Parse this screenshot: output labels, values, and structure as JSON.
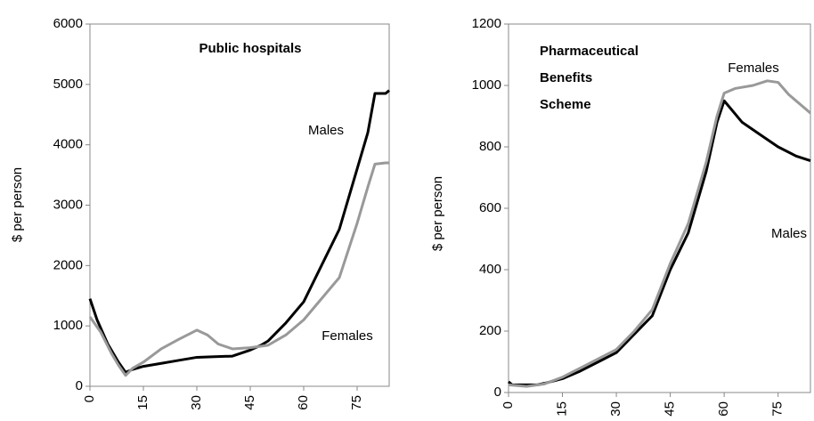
{
  "chart_data": [
    {
      "type": "line",
      "ylabel": "$ per person",
      "annotations": [
        "Public hospitals",
        "Males",
        "Females"
      ],
      "xlim": [
        0,
        84
      ],
      "xticks": [
        0,
        15,
        30,
        45,
        60,
        75
      ],
      "ylim": [
        0,
        6000
      ],
      "yticks": [
        0,
        1000,
        2000,
        3000,
        4000,
        5000,
        6000
      ],
      "series": [
        {
          "name": "Males",
          "color": "#000000",
          "x": [
            0,
            2,
            5,
            8,
            10,
            12,
            15,
            20,
            25,
            30,
            35,
            40,
            45,
            48,
            50,
            55,
            60,
            65,
            70,
            75,
            78,
            80,
            83,
            84
          ],
          "values": [
            1450,
            1100,
            700,
            400,
            230,
            280,
            330,
            380,
            430,
            480,
            490,
            500,
            600,
            680,
            750,
            1050,
            1400,
            2000,
            2600,
            3600,
            4200,
            4850,
            4850,
            4900
          ]
        },
        {
          "name": "Females",
          "color": "#999999",
          "x": [
            0,
            3,
            6,
            8,
            10,
            12,
            15,
            20,
            25,
            30,
            33,
            36,
            40,
            45,
            50,
            55,
            60,
            65,
            70,
            75,
            78,
            80,
            83,
            84
          ],
          "values": [
            1150,
            900,
            550,
            350,
            180,
            300,
            400,
            620,
            780,
            930,
            850,
            700,
            620,
            640,
            680,
            850,
            1100,
            1450,
            1800,
            2700,
            3300,
            3680,
            3700,
            3700
          ]
        }
      ]
    },
    {
      "type": "line",
      "ylabel": "$ per person",
      "annotations": [
        "Pharmaceutical",
        "Benefits",
        "Scheme",
        "Females",
        "Males"
      ],
      "xlim": [
        0,
        84
      ],
      "xticks": [
        0,
        15,
        30,
        45,
        60,
        75
      ],
      "ylim": [
        0,
        1200
      ],
      "yticks": [
        0,
        200,
        400,
        600,
        800,
        1000,
        1200
      ],
      "series": [
        {
          "name": "Males",
          "color": "#000000",
          "x": [
            0,
            1,
            5,
            8,
            10,
            15,
            20,
            25,
            30,
            35,
            40,
            45,
            50,
            55,
            58,
            60,
            65,
            70,
            75,
            80,
            84
          ],
          "values": [
            35,
            25,
            25,
            25,
            30,
            45,
            70,
            100,
            130,
            190,
            250,
            400,
            520,
            720,
            880,
            950,
            880,
            840,
            800,
            770,
            755
          ]
        },
        {
          "name": "Females",
          "color": "#999999",
          "x": [
            0,
            5,
            10,
            15,
            20,
            25,
            30,
            35,
            40,
            45,
            50,
            55,
            58,
            60,
            63,
            68,
            72,
            75,
            78,
            82,
            84
          ],
          "values": [
            25,
            20,
            28,
            50,
            80,
            110,
            140,
            200,
            270,
            420,
            550,
            750,
            900,
            975,
            990,
            1000,
            1015,
            1010,
            970,
            930,
            910
          ]
        }
      ]
    }
  ]
}
